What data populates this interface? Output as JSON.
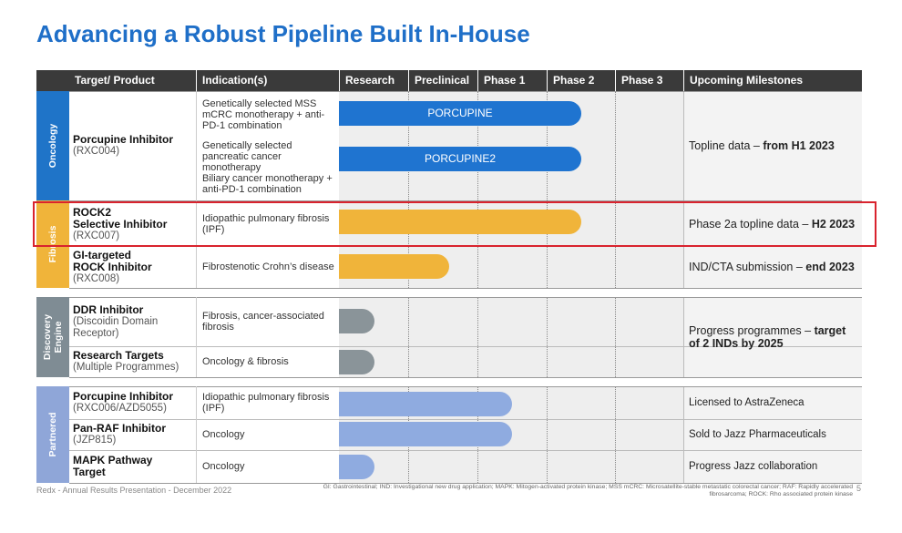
{
  "title": "Advancing a Robust Pipeline Built In-House",
  "header": [
    "Target/ Product",
    "Indication(s)",
    "Research",
    "Preclinical",
    "Phase 1",
    "Phase 2",
    "Phase 3",
    "Upcoming Milestones"
  ],
  "sections": [
    {
      "label": "Oncology",
      "targets": [
        {
          "name": [
            "Porcupine Inhibitor"
          ],
          "code": "(RXC004)"
        }
      ],
      "indications": [
        [
          "Genetically selected MSS mCRC monotherapy + anti-PD-1 combination"
        ],
        [
          "Genetically selected pancreatic cancer monotherapy",
          "Biliary cancer monotherapy + anti-PD-1 combination"
        ]
      ],
      "bar_labels": [
        "PORCUPINE",
        "PORCUPINE2"
      ],
      "milestones": [
        {
          "text": "Topline data – ",
          "bold": "from H1 2023"
        }
      ]
    },
    {
      "label": "Fibrosis",
      "targets": [
        {
          "name": [
            "ROCK2",
            "Selective Inhibitor"
          ],
          "code": "(RXC007)"
        },
        {
          "name": [
            "GI-targeted",
            "ROCK Inhibitor"
          ],
          "code": "(RXC008)"
        }
      ],
      "indications": [
        [
          "Idiopathic pulmonary fibrosis (IPF)"
        ],
        [
          "Fibrostenotic Crohn’s disease"
        ]
      ],
      "milestones": [
        {
          "text": "Phase 2a topline data – ",
          "bold": "H2 2023"
        },
        {
          "text": "IND/CTA submission – ",
          "bold": "end 2023"
        }
      ]
    },
    {
      "label": "Discovery Engine",
      "targets": [
        {
          "name": [
            "DDR Inhibitor"
          ],
          "code": "(Discoidin Domain Receptor)"
        },
        {
          "name": [
            "Research Targets"
          ],
          "code": "(Multiple Programmes)"
        }
      ],
      "indications": [
        [
          "Fibrosis, cancer-associated fibrosis"
        ],
        [
          "Oncology & fibrosis"
        ]
      ],
      "milestones": [
        {
          "text": "Progress programmes – ",
          "bold": "target of 2 INDs by 2025"
        }
      ]
    },
    {
      "label": "Partnered",
      "targets": [
        {
          "name": [
            "Porcupine Inhibitor"
          ],
          "code": "(RXC006/AZD5055)"
        },
        {
          "name": [
            "Pan-RAF Inhibitor"
          ],
          "code": "(JZP815)"
        },
        {
          "name": [
            "MAPK Pathway",
            "Target"
          ]
        }
      ],
      "indications": [
        [
          "Idiopathic pulmonary fibrosis (IPF)"
        ],
        [
          "Oncology"
        ],
        [
          "Oncology"
        ]
      ],
      "milestones": [
        {
          "text": "Licensed to AstraZeneca"
        },
        {
          "text": "Sold to Jazz Pharmaceuticals"
        },
        {
          "text": "Progress Jazz collaboration"
        }
      ]
    }
  ],
  "footer": "Redx - Annual Results Presentation - December 2022",
  "footnote": "GI: Gastrointestinal; IND: Investigational new drug application; MAPK: Mitogen-activated protein kinase; MSS mCRC: Microsatellite-stable metastatic colorectal cancer; RAF: Rapidly accelerated fibrosarcoma; ROCK: Rho associated protein kinase",
  "page": "5"
}
